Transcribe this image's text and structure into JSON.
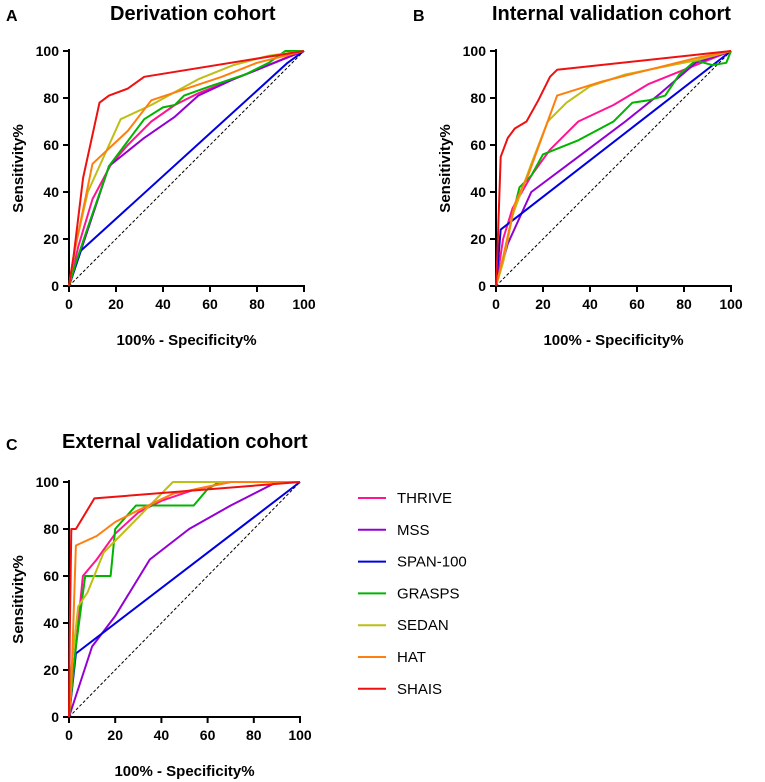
{
  "chart_data": {
    "type": "line",
    "legend": {
      "placement": "right",
      "entries": [
        {
          "name": "THRIVE",
          "color": "#ff1493"
        },
        {
          "name": "MSS",
          "color": "#9400d3"
        },
        {
          "name": "SPAN-100",
          "color": "#0000e0"
        },
        {
          "name": "GRASPS",
          "color": "#00b400"
        },
        {
          "name": "SEDAN",
          "color": "#bebe14"
        },
        {
          "name": "HAT",
          "color": "#ff7f0e"
        },
        {
          "name": "SHAIS",
          "color": "#ee1111"
        }
      ]
    },
    "panels": [
      {
        "letter": "A",
        "title": "Derivation cohort",
        "xlabel": "100% - Specificity%",
        "ylabel": "Sensitivity%",
        "xlim": [
          0,
          100
        ],
        "ylim": [
          0,
          100
        ],
        "xticks": [
          "0",
          "20",
          "40",
          "60",
          "80",
          "100"
        ],
        "yticks": [
          "0",
          "20",
          "40",
          "60",
          "80",
          "100"
        ],
        "reference_line": [
          [
            0,
            0
          ],
          [
            100,
            100
          ]
        ],
        "series": [
          {
            "name": "THRIVE",
            "points": [
              [
                0,
                0
              ],
              [
                4,
                17
              ],
              [
                10,
                37
              ],
              [
                18,
                52
              ],
              [
                25,
                60
              ],
              [
                35,
                70
              ],
              [
                45,
                77
              ],
              [
                55,
                82
              ],
              [
                65,
                86
              ],
              [
                80,
                92
              ],
              [
                92,
                97
              ],
              [
                100,
                100
              ]
            ]
          },
          {
            "name": "MSS",
            "points": [
              [
                0,
                0
              ],
              [
                5,
                15
              ],
              [
                17,
                51
              ],
              [
                32,
                63
              ],
              [
                45,
                72
              ],
              [
                55,
                81
              ],
              [
                70,
                88
              ],
              [
                85,
                94
              ],
              [
                100,
                100
              ]
            ]
          },
          {
            "name": "SPAN-100",
            "points": [
              [
                0,
                0
              ],
              [
                5,
                15
              ],
              [
                93,
                95
              ],
              [
                100,
                100
              ]
            ]
          },
          {
            "name": "GRASPS",
            "points": [
              [
                0,
                0
              ],
              [
                3,
                10
              ],
              [
                8,
                25
              ],
              [
                17,
                51
              ],
              [
                32,
                71
              ],
              [
                40,
                76
              ],
              [
                45,
                77
              ],
              [
                49,
                81
              ],
              [
                60,
                85
              ],
              [
                75,
                90
              ],
              [
                85,
                95
              ],
              [
                92,
                100
              ],
              [
                100,
                100
              ]
            ]
          },
          {
            "name": "SEDAN",
            "points": [
              [
                0,
                0
              ],
              [
                3,
                18
              ],
              [
                8,
                40
              ],
              [
                22,
                71
              ],
              [
                35,
                77
              ],
              [
                55,
                88
              ],
              [
                70,
                94
              ],
              [
                85,
                98
              ],
              [
                100,
                100
              ]
            ]
          },
          {
            "name": "HAT",
            "points": [
              [
                0,
                0
              ],
              [
                2,
                13
              ],
              [
                10,
                52
              ],
              [
                25,
                66
              ],
              [
                35,
                79
              ],
              [
                50,
                84
              ],
              [
                65,
                89
              ],
              [
                80,
                95
              ],
              [
                100,
                100
              ]
            ]
          },
          {
            "name": "SHAIS",
            "points": [
              [
                0,
                0
              ],
              [
                2,
                13
              ],
              [
                6,
                46
              ],
              [
                13,
                78
              ],
              [
                17,
                81
              ],
              [
                25,
                84
              ],
              [
                32,
                89
              ],
              [
                100,
                100
              ]
            ]
          }
        ]
      },
      {
        "letter": "B",
        "title": "Internal validation cohort",
        "xlabel": "100% - Specificity%",
        "ylabel": "Sensitivity%",
        "xlim": [
          0,
          100
        ],
        "ylim": [
          0,
          100
        ],
        "xticks": [
          "0",
          "20",
          "40",
          "60",
          "80",
          "100"
        ],
        "yticks": [
          "0",
          "20",
          "40",
          "60",
          "80",
          "100"
        ],
        "reference_line": [
          [
            0,
            0
          ],
          [
            100,
            100
          ]
        ],
        "series": [
          {
            "name": "THRIVE",
            "points": [
              [
                0,
                0
              ],
              [
                3,
                20
              ],
              [
                7,
                33
              ],
              [
                15,
                47
              ],
              [
                23,
                58
              ],
              [
                35,
                70
              ],
              [
                50,
                77
              ],
              [
                65,
                86
              ],
              [
                80,
                92
              ],
              [
                100,
                100
              ]
            ]
          },
          {
            "name": "MSS",
            "points": [
              [
                0,
                0
              ],
              [
                5,
                18
              ],
              [
                15,
                40
              ],
              [
                35,
                55
              ],
              [
                55,
                70
              ],
              [
                70,
                82
              ],
              [
                85,
                95
              ],
              [
                100,
                100
              ]
            ]
          },
          {
            "name": "SPAN-100",
            "points": [
              [
                0,
                0
              ],
              [
                2,
                24
              ],
              [
                100,
                100
              ]
            ]
          },
          {
            "name": "GRASPS",
            "points": [
              [
                0,
                0
              ],
              [
                3,
                12
              ],
              [
                7,
                30
              ],
              [
                10,
                42
              ],
              [
                15,
                47
              ],
              [
                20,
                56
              ],
              [
                25,
                58
              ],
              [
                35,
                62
              ],
              [
                50,
                70
              ],
              [
                58,
                78
              ],
              [
                65,
                79
              ],
              [
                72,
                81
              ],
              [
                78,
                90
              ],
              [
                85,
                96
              ],
              [
                92,
                94
              ],
              [
                98,
                95
              ],
              [
                100,
                100
              ]
            ]
          },
          {
            "name": "SEDAN",
            "points": [
              [
                0,
                0
              ],
              [
                3,
                10
              ],
              [
                7,
                30
              ],
              [
                15,
                52
              ],
              [
                22,
                70
              ],
              [
                30,
                78
              ],
              [
                40,
                85
              ],
              [
                55,
                90
              ],
              [
                70,
                93
              ],
              [
                85,
                96
              ],
              [
                100,
                100
              ]
            ]
          },
          {
            "name": "HAT",
            "points": [
              [
                0,
                0
              ],
              [
                3,
                12
              ],
              [
                8,
                35
              ],
              [
                14,
                48
              ],
              [
                26,
                81
              ],
              [
                45,
                87
              ],
              [
                65,
                92
              ],
              [
                85,
                97
              ],
              [
                100,
                100
              ]
            ]
          },
          {
            "name": "SHAIS",
            "points": [
              [
                0,
                0
              ],
              [
                0.5,
                12
              ],
              [
                2,
                55
              ],
              [
                5,
                63
              ],
              [
                8,
                67
              ],
              [
                13,
                70
              ],
              [
                18,
                79
              ],
              [
                23,
                89
              ],
              [
                26,
                92
              ],
              [
                100,
                100
              ]
            ]
          }
        ]
      },
      {
        "letter": "C",
        "title": "External validation cohort",
        "xlabel": "100% - Specificity%",
        "ylabel": "Sensitivity%",
        "xlim": [
          0,
          100
        ],
        "ylim": [
          0,
          100
        ],
        "xticks": [
          "0",
          "20",
          "40",
          "60",
          "80",
          "100"
        ],
        "yticks": [
          "0",
          "20",
          "40",
          "60",
          "80",
          "100"
        ],
        "reference_line": [
          [
            0,
            0
          ],
          [
            100,
            100
          ]
        ],
        "series": [
          {
            "name": "THRIVE",
            "points": [
              [
                0,
                0
              ],
              [
                2,
                20
              ],
              [
                6,
                60
              ],
              [
                12,
                67
              ],
              [
                20,
                78
              ],
              [
                30,
                87
              ],
              [
                40,
                92
              ],
              [
                55,
                97
              ],
              [
                70,
                100
              ],
              [
                100,
                100
              ]
            ]
          },
          {
            "name": "MSS",
            "points": [
              [
                0,
                0
              ],
              [
                10,
                30
              ],
              [
                20,
                43
              ],
              [
                35,
                67
              ],
              [
                52,
                80
              ],
              [
                70,
                90
              ],
              [
                90,
                100
              ],
              [
                100,
                100
              ]
            ]
          },
          {
            "name": "SPAN-100",
            "points": [
              [
                0,
                0
              ],
              [
                3,
                27
              ],
              [
                100,
                100
              ]
            ]
          },
          {
            "name": "GRASPS",
            "points": [
              [
                0,
                0
              ],
              [
                1,
                10
              ],
              [
                3,
                30
              ],
              [
                7,
                60
              ],
              [
                18,
                60
              ],
              [
                20,
                80
              ],
              [
                29,
                90
              ],
              [
                40,
                90
              ],
              [
                54,
                90
              ],
              [
                60,
                97
              ],
              [
                65,
                100
              ],
              [
                100,
                100
              ]
            ]
          },
          {
            "name": "SEDAN",
            "points": [
              [
                0,
                0
              ],
              [
                1,
                20
              ],
              [
                4,
                47
              ],
              [
                8,
                53
              ],
              [
                15,
                70
              ],
              [
                25,
                80
              ],
              [
                35,
                90
              ],
              [
                45,
                100
              ],
              [
                100,
                100
              ]
            ]
          },
          {
            "name": "HAT",
            "points": [
              [
                0,
                0
              ],
              [
                1,
                13
              ],
              [
                3,
                73
              ],
              [
                12,
                77
              ],
              [
                20,
                83
              ],
              [
                30,
                88
              ],
              [
                45,
                95
              ],
              [
                60,
                98
              ],
              [
                70,
                100
              ],
              [
                100,
                100
              ]
            ]
          },
          {
            "name": "SHAIS",
            "points": [
              [
                0,
                0
              ],
              [
                0.3,
                33
              ],
              [
                1,
                80
              ],
              [
                3,
                80
              ],
              [
                11,
                93
              ],
              [
                100,
                100
              ]
            ]
          }
        ]
      }
    ]
  }
}
